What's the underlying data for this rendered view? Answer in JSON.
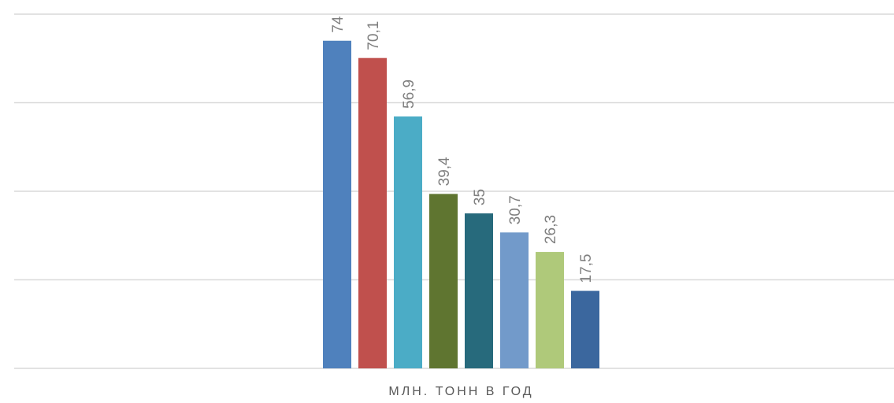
{
  "chart_data": {
    "type": "bar",
    "categories": [
      "млн. тонн в год"
    ],
    "series": [
      {
        "value": 74,
        "label": "74",
        "color": "#4f81bd"
      },
      {
        "value": 70.1,
        "label": "70,1",
        "color": "#c0504d"
      },
      {
        "value": 56.9,
        "label": "56,9",
        "color": "#4bacc6"
      },
      {
        "value": 39.4,
        "label": "39,4",
        "color": "#5f7530"
      },
      {
        "value": 35,
        "label": "35",
        "color": "#276a7c"
      },
      {
        "value": 30.7,
        "label": "30,7",
        "color": "#729aca"
      },
      {
        "value": 26.3,
        "label": "26,3",
        "color": "#afc97a"
      },
      {
        "value": 17.5,
        "label": "17,5",
        "color": "#3b679e"
      }
    ],
    "xlabel": "МЛН. ТОНН В ГОД",
    "ylim": [
      0,
      80
    ],
    "grid": true,
    "legend": "none"
  }
}
